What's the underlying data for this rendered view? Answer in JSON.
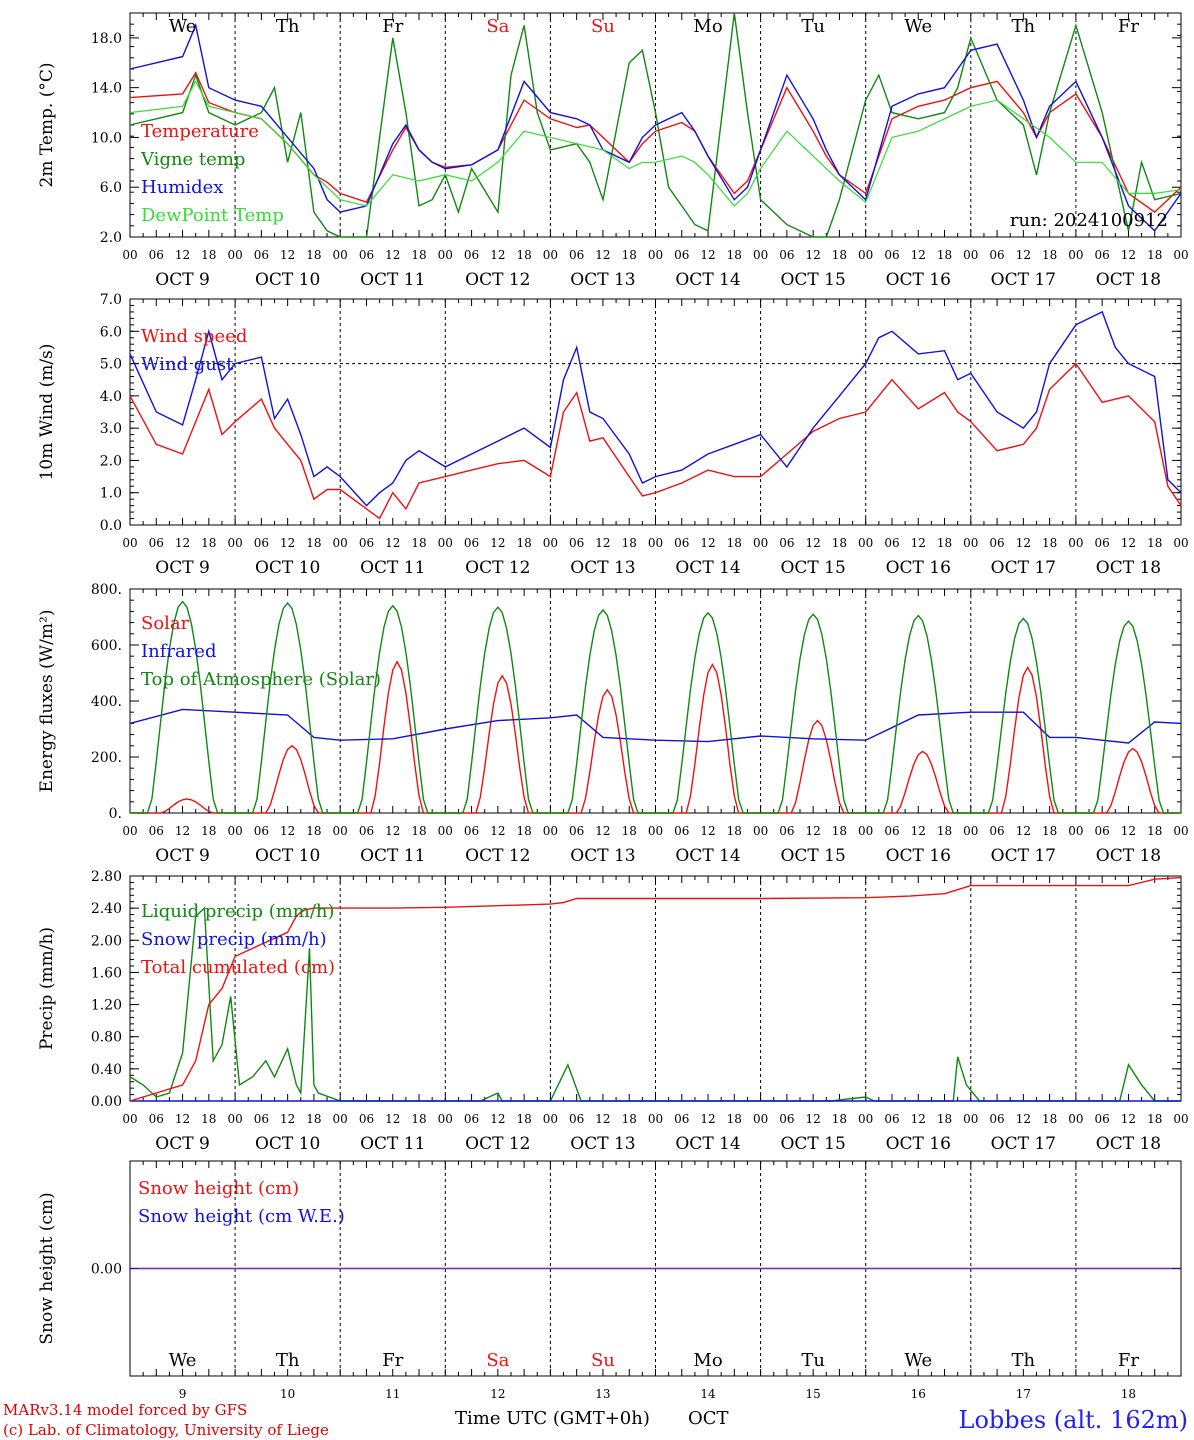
{
  "days": [
    "We",
    "Th",
    "Fr",
    "Sa",
    "Su",
    "Mo",
    "Tu",
    "We",
    "Th",
    "Fr"
  ],
  "weekend_days": [
    3,
    4
  ],
  "dates": [
    "OCT  9",
    "OCT 10",
    "OCT 11",
    "OCT 12",
    "OCT 13",
    "OCT 14",
    "OCT 15",
    "OCT 16",
    "OCT 17",
    "OCT 18"
  ],
  "day_numbers": [
    "9",
    "10",
    "11",
    "12",
    "13",
    "14",
    "15",
    "16",
    "17",
    "18"
  ],
  "hour_labels": [
    "00",
    "06",
    "12",
    "18"
  ],
  "colors": {
    "red": "#ee1111",
    "green": "#118811",
    "blue": "#1111dd",
    "lightgreen": "#33dd33",
    "purple": "#8844aa",
    "darkgreen": "#227722"
  },
  "footer": {
    "model": "MARv3.14 model forced by GFS",
    "lab": "(c) Lab. of Climatology, University of Liege",
    "xlabel": "Time UTC (GMT+0h)",
    "xlabel_unit": "OCT",
    "location": "Lobbes (alt. 162m)"
  },
  "chart_data": [
    {
      "type": "line",
      "ylabel": "2m Temp. (°C)",
      "ylim": [
        2,
        20
      ],
      "yticks": [
        2,
        6,
        10,
        14,
        18
      ],
      "ytick_labels": [
        "2.0",
        "6.0",
        "10.0",
        "14.0",
        "18.0"
      ],
      "grid": "vertical dashed day separators",
      "legend_placement": "top-left",
      "annotation": "run: 2024100912",
      "series": [
        {
          "name": "Temperature",
          "color": "red",
          "x": [
            0,
            12,
            15,
            18,
            24,
            30,
            36,
            42,
            45,
            48,
            54,
            60,
            63,
            66,
            69,
            72,
            78,
            84,
            90,
            96,
            102,
            105,
            108,
            114,
            117,
            120,
            126,
            129,
            132,
            138,
            141,
            144,
            150,
            156,
            159,
            162,
            168,
            174,
            180,
            186,
            189,
            192,
            198,
            204,
            207,
            210,
            216,
            222,
            228,
            234,
            240
          ],
          "y": [
            13.2,
            13.5,
            15.2,
            12.8,
            12.0,
            11.5,
            9.5,
            7.0,
            6.4,
            5.5,
            4.8,
            9.0,
            10.8,
            9.0,
            8.0,
            7.6,
            7.8,
            9.0,
            13.0,
            11.5,
            10.8,
            11.0,
            10.0,
            8.0,
            9.5,
            10.5,
            11.2,
            10.5,
            8.5,
            5.5,
            6.5,
            9.0,
            14.0,
            10.5,
            8.5,
            7.0,
            5.5,
            11.5,
            12.5,
            13.0,
            13.5,
            14.0,
            14.5,
            12.0,
            10.0,
            12.0,
            13.5,
            10.0,
            5.5,
            4.0,
            6.0
          ]
        },
        {
          "name": "Vigne temp",
          "color": "green",
          "x": [
            0,
            12,
            15,
            18,
            24,
            30,
            33,
            36,
            39,
            42,
            45,
            48,
            54,
            57,
            60,
            63,
            66,
            69,
            72,
            75,
            78,
            84,
            87,
            90,
            93,
            96,
            102,
            105,
            108,
            114,
            117,
            120,
            123,
            126,
            129,
            132,
            138,
            141,
            144,
            150,
            156,
            159,
            162,
            168,
            171,
            174,
            180,
            186,
            189,
            192,
            198,
            204,
            207,
            210,
            216,
            222,
            228,
            231,
            234,
            240
          ],
          "y": [
            11.0,
            12.0,
            15.0,
            12.0,
            11.0,
            12.0,
            14.0,
            8.0,
            12.0,
            4.0,
            2.5,
            1.5,
            1.0,
            10.0,
            18.0,
            12.0,
            4.5,
            5.0,
            7.0,
            4.0,
            7.5,
            4.0,
            15.0,
            19.0,
            12.0,
            9.0,
            9.5,
            8.0,
            5.0,
            16.0,
            17.0,
            12.0,
            6.0,
            4.5,
            3.0,
            2.5,
            20.0,
            12.0,
            5.0,
            3.0,
            2.0,
            2.0,
            5.0,
            13.0,
            15.0,
            12.0,
            11.5,
            12.0,
            14.0,
            18.0,
            13.0,
            11.0,
            7.0,
            12.0,
            19.0,
            12.0,
            2.5,
            8.0,
            5.0,
            5.5
          ]
        },
        {
          "name": "Humidex",
          "color": "blue",
          "x": [
            0,
            12,
            15,
            18,
            24,
            30,
            36,
            42,
            45,
            48,
            54,
            60,
            63,
            66,
            69,
            72,
            78,
            84,
            90,
            96,
            102,
            105,
            108,
            114,
            117,
            120,
            126,
            129,
            132,
            138,
            141,
            144,
            150,
            156,
            159,
            162,
            168,
            174,
            180,
            186,
            189,
            192,
            198,
            204,
            207,
            210,
            216,
            222,
            228,
            234,
            240
          ],
          "y": [
            15.5,
            16.5,
            19.0,
            14.0,
            13.0,
            12.5,
            10.0,
            7.5,
            5.0,
            4.0,
            4.5,
            9.5,
            11.0,
            9.0,
            8.0,
            7.5,
            7.8,
            9.0,
            14.5,
            12.0,
            11.5,
            11.0,
            9.0,
            8.0,
            10.0,
            11.0,
            12.0,
            10.5,
            8.5,
            5.0,
            6.0,
            9.0,
            15.0,
            11.5,
            9.0,
            7.0,
            5.0,
            12.5,
            13.5,
            14.0,
            15.5,
            17.0,
            17.5,
            13.0,
            10.0,
            12.5,
            14.5,
            10.0,
            4.5,
            2.5,
            5.5
          ]
        },
        {
          "name": "DewPoint Temp",
          "color": "lightgreen",
          "x": [
            0,
            12,
            15,
            18,
            24,
            30,
            36,
            42,
            45,
            48,
            54,
            60,
            66,
            72,
            78,
            84,
            90,
            96,
            102,
            108,
            114,
            117,
            120,
            126,
            129,
            132,
            138,
            141,
            144,
            150,
            156,
            162,
            168,
            174,
            180,
            186,
            192,
            198,
            204,
            210,
            216,
            222,
            228,
            234,
            240
          ],
          "y": [
            12.0,
            12.5,
            14.5,
            12.5,
            12.0,
            11.5,
            9.5,
            7.0,
            6.0,
            5.0,
            4.5,
            7.0,
            6.5,
            7.0,
            6.5,
            8.0,
            10.5,
            10.0,
            9.5,
            9.0,
            7.5,
            8.0,
            8.0,
            8.5,
            8.0,
            7.0,
            4.5,
            5.5,
            7.5,
            10.5,
            8.5,
            6.5,
            4.8,
            10.0,
            10.5,
            11.5,
            12.5,
            13.0,
            11.5,
            10.0,
            8.0,
            8.0,
            5.5,
            5.5,
            5.8
          ]
        }
      ]
    },
    {
      "type": "line",
      "ylabel": "10m Wind (m/s)",
      "ylim": [
        0,
        7
      ],
      "yticks": [
        0,
        1,
        2,
        3,
        4,
        5,
        6,
        7
      ],
      "ytick_labels": [
        "0.0",
        "1.0",
        "2.0",
        "3.0",
        "4.0",
        "5.0",
        "6.0",
        "7.0"
      ],
      "reference_line": 5,
      "legend_placement": "top-left",
      "series": [
        {
          "name": "Wind speed",
          "color": "red",
          "x": [
            0,
            6,
            12,
            18,
            21,
            24,
            30,
            33,
            36,
            39,
            42,
            45,
            48,
            54,
            57,
            60,
            63,
            66,
            72,
            78,
            84,
            90,
            96,
            99,
            102,
            105,
            108,
            114,
            117,
            120,
            126,
            132,
            138,
            144,
            150,
            156,
            162,
            168,
            174,
            180,
            186,
            189,
            192,
            198,
            204,
            207,
            210,
            216,
            222,
            228,
            234,
            237,
            240
          ],
          "y": [
            4.0,
            2.5,
            2.2,
            4.2,
            2.8,
            3.2,
            3.9,
            3.0,
            2.5,
            2.0,
            0.8,
            1.1,
            1.1,
            0.5,
            0.2,
            1.0,
            0.5,
            1.3,
            1.5,
            1.7,
            1.9,
            2.0,
            1.5,
            3.5,
            4.1,
            2.6,
            2.7,
            1.5,
            0.9,
            1.0,
            1.3,
            1.7,
            1.5,
            1.5,
            2.2,
            2.9,
            3.3,
            3.5,
            4.5,
            3.6,
            4.1,
            3.5,
            3.2,
            2.3,
            2.5,
            3.0,
            4.2,
            5.0,
            3.8,
            4.0,
            3.2,
            1.2,
            0.6
          ]
        },
        {
          "name": "Wind gust",
          "color": "blue",
          "x": [
            0,
            6,
            12,
            15,
            18,
            21,
            24,
            30,
            33,
            36,
            39,
            42,
            45,
            48,
            54,
            57,
            60,
            63,
            66,
            72,
            78,
            84,
            90,
            96,
            99,
            102,
            105,
            108,
            114,
            117,
            120,
            126,
            132,
            138,
            144,
            150,
            156,
            162,
            168,
            171,
            174,
            180,
            186,
            189,
            192,
            198,
            204,
            207,
            210,
            216,
            222,
            225,
            228,
            234,
            237,
            240
          ],
          "y": [
            5.3,
            3.5,
            3.1,
            4.5,
            6.0,
            4.5,
            5.0,
            5.2,
            3.3,
            3.9,
            2.8,
            1.5,
            1.8,
            1.5,
            0.6,
            1.0,
            1.3,
            2.0,
            2.3,
            1.8,
            2.2,
            2.6,
            3.0,
            2.4,
            4.5,
            5.5,
            3.5,
            3.3,
            2.2,
            1.3,
            1.5,
            1.7,
            2.2,
            2.5,
            2.8,
            1.8,
            3.0,
            4.0,
            5.0,
            5.8,
            6.0,
            5.3,
            5.4,
            4.5,
            4.7,
            3.5,
            3.0,
            3.5,
            5.0,
            6.2,
            6.6,
            5.5,
            5.0,
            4.6,
            1.4,
            1.0
          ]
        }
      ]
    },
    {
      "type": "line",
      "ylabel": "Energy fluxes (W/m²)",
      "ylim": [
        0,
        800
      ],
      "yticks": [
        0,
        200,
        400,
        600,
        800
      ],
      "ytick_labels": [
        "0.",
        "200.",
        "400.",
        "600.",
        "800."
      ],
      "legend_placement": "top-left",
      "series": [
        {
          "name": "Solar",
          "color": "red",
          "peaks": [
            50,
            240,
            540,
            490,
            440,
            530,
            330,
            220,
            520,
            230
          ],
          "peak_hour": 13
        },
        {
          "name": "Infrared",
          "color": "blue",
          "x": [
            0,
            12,
            24,
            36,
            42,
            48,
            60,
            72,
            84,
            96,
            102,
            108,
            120,
            132,
            144,
            156,
            168,
            180,
            192,
            204,
            210,
            216,
            228,
            234,
            240
          ],
          "y": [
            320,
            370,
            360,
            350,
            270,
            260,
            265,
            300,
            330,
            340,
            350,
            270,
            260,
            255,
            275,
            265,
            260,
            350,
            360,
            360,
            270,
            270,
            250,
            325,
            320
          ]
        },
        {
          "name": "Top of Atmosphere (Solar)",
          "color": "green",
          "peaks": [
            755,
            750,
            740,
            735,
            725,
            715,
            710,
            705,
            695,
            685
          ],
          "peak_hour": 12
        }
      ]
    },
    {
      "type": "line",
      "ylabel": "Precip (mm/h)",
      "ylim": [
        0,
        2.8
      ],
      "yticks": [
        0,
        0.4,
        0.8,
        1.2,
        1.6,
        2.0,
        2.4,
        2.8
      ],
      "ytick_labels": [
        "0.00",
        "0.40",
        "0.80",
        "1.20",
        "1.60",
        "2.00",
        "2.40",
        "2.80"
      ],
      "legend_placement": "top-left",
      "series": [
        {
          "name": "Liquid precip (mm/h)",
          "color": "green",
          "x": [
            0,
            3,
            6,
            9,
            12,
            15,
            17,
            19,
            21,
            23,
            25,
            28,
            31,
            33,
            36,
            38,
            39,
            41,
            42,
            43,
            48,
            60,
            80,
            84,
            85,
            96,
            100,
            101,
            103,
            110,
            120,
            140,
            160,
            168,
            170,
            176,
            188,
            189,
            191,
            194,
            200,
            220,
            226,
            228,
            231,
            234,
            240
          ],
          "y": [
            0.3,
            0.2,
            0.05,
            0.1,
            0.6,
            2.3,
            2.4,
            0.5,
            0.7,
            1.3,
            0.2,
            0.3,
            0.5,
            0.3,
            0.65,
            0.2,
            0.1,
            1.9,
            0.2,
            0.1,
            0.0,
            0.0,
            0.0,
            0.1,
            0.0,
            0.0,
            0.45,
            0.3,
            0.0,
            0.0,
            0.0,
            0.0,
            0.0,
            0.05,
            0.0,
            0.0,
            0.0,
            0.55,
            0.2,
            0.0,
            0.0,
            0.0,
            0.0,
            0.45,
            0.2,
            0.0,
            0.0
          ]
        },
        {
          "name": "Snow precip (mm/h)",
          "color": "blue",
          "x": [
            0,
            240
          ],
          "y": [
            0,
            0
          ]
        },
        {
          "name": "Total cumulated (cm)",
          "color": "red",
          "x": [
            0,
            6,
            12,
            15,
            18,
            21,
            24,
            30,
            36,
            38,
            39,
            40,
            42,
            48,
            60,
            72,
            84,
            96,
            99,
            102,
            110,
            120,
            144,
            168,
            178,
            186,
            189,
            192,
            204,
            216,
            228,
            234,
            240
          ],
          "y": [
            0.0,
            0.1,
            0.2,
            0.5,
            1.2,
            1.4,
            1.8,
            1.95,
            2.1,
            2.3,
            2.35,
            2.38,
            2.4,
            2.4,
            2.4,
            2.41,
            2.43,
            2.45,
            2.47,
            2.52,
            2.52,
            2.52,
            2.52,
            2.53,
            2.55,
            2.58,
            2.63,
            2.68,
            2.68,
            2.68,
            2.68,
            2.76,
            2.78
          ]
        }
      ]
    },
    {
      "type": "line",
      "ylabel": "Snow height (cm)",
      "yticks": [
        0
      ],
      "ytick_labels": [
        "0.00"
      ],
      "legend_placement": "top-left",
      "series": [
        {
          "name": "Snow height (cm)",
          "color": "red",
          "x": [
            0,
            240
          ],
          "y": [
            0,
            0
          ]
        },
        {
          "name": "Snow height (cm W.E.)",
          "color": "blue",
          "x": [
            0,
            240
          ],
          "y": [
            0,
            0
          ]
        }
      ]
    }
  ]
}
